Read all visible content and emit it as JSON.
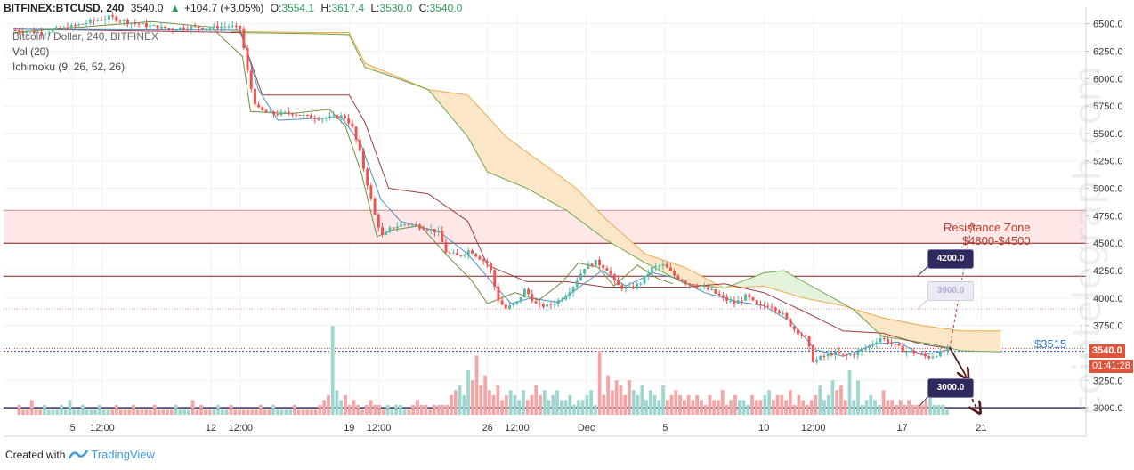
{
  "header": {
    "symbol": "BITFINEX:BTCUSD, 240",
    "last": "3540.0",
    "up_arrow": "▲",
    "change": "+104.7 (+3.05%)",
    "o_label": "O:",
    "o": "3554.1",
    "h_label": "H:",
    "h": "3617.4",
    "l_label": "L:",
    "l": "3530.0",
    "c_label": "C:",
    "c": "3540.0"
  },
  "legends": {
    "series": "Bitcoin / Dollar, 240, BITFINEX",
    "volume": "Vol (20)",
    "ichimoku": "Ichimoku (9, 26, 52, 26)"
  },
  "annotations": {
    "resistance_title": "Resistance Zone",
    "resistance_range": "$4800-$4500",
    "support_label": "$3515",
    "callout_high": "4200.0",
    "callout_mid": "3900.0",
    "callout_low": "3000.0"
  },
  "price_axis": {
    "last_price_tag": "3540.0",
    "countdown_tag": "01:41:28"
  },
  "footer": {
    "created_with": "Created with",
    "brand": "TradingView"
  },
  "watermark": "cointelegraph.com",
  "colors": {
    "bull": "#53b9a9",
    "bear": "#ef5350",
    "kumo_bear": "#fbe6c8",
    "kumo_bull": "#e5f2dc",
    "resistance_zone": "#fde7e7",
    "level_line": "#8b1a1a",
    "support_line": "#2b4fb8",
    "callout_dark": "#2e2a5c"
  },
  "chart_data": {
    "type": "candlestick",
    "y_ticks": [
      3000,
      3250,
      3500,
      3750,
      4000,
      4250,
      4500,
      4750,
      5000,
      5250,
      5500,
      5750,
      6000,
      6250,
      6500
    ],
    "y_tick_labels": [
      "3000.0",
      "3250.0",
      "3500.0",
      "3750.0",
      "4000.0",
      "4250.0",
      "4500.0",
      "4750.0",
      "5000.0",
      "5250.0",
      "5500.0",
      "5750.0",
      "6000.0",
      "6250.0",
      "6500.0"
    ],
    "ylim": [
      2920,
      6570
    ],
    "x_tick_labels": [
      "5",
      "12:00",
      "12",
      "12:00",
      "19",
      "12:00",
      "26",
      "12:00",
      "Dec",
      "5",
      "10",
      "12:00",
      "17",
      "21"
    ],
    "x_tick_days": [
      5,
      6.5,
      12,
      13.5,
      19,
      20.5,
      26,
      27.5,
      31,
      35,
      40,
      42.5,
      47,
      51
    ],
    "xlim_days": [
      1.5,
      56.3
    ],
    "levels": {
      "resistance_zone": [
        4500,
        4800
      ],
      "line_4200": 4200,
      "dotted_3900": 3900,
      "support": 3515,
      "last_price": 3540,
      "line_3000": 3000
    },
    "price_path": [
      [
        2.0,
        6440
      ],
      [
        3.5,
        6420
      ],
      [
        5.0,
        6470
      ],
      [
        6.0,
        6520
      ],
      [
        7.0,
        6560
      ],
      [
        8.0,
        6510
      ],
      [
        9.0,
        6480
      ],
      [
        10.0,
        6450
      ],
      [
        11.0,
        6470
      ],
      [
        12.0,
        6460
      ],
      [
        13.0,
        6480
      ],
      [
        13.6,
        6450
      ],
      [
        14.0,
        6000
      ],
      [
        14.4,
        5730
      ],
      [
        15.0,
        5680
      ],
      [
        15.6,
        5680
      ],
      [
        16.2,
        5690
      ],
      [
        17.0,
        5650
      ],
      [
        18.0,
        5640
      ],
      [
        18.8,
        5660
      ],
      [
        19.2,
        5580
      ],
      [
        19.6,
        5350
      ],
      [
        20.0,
        5050
      ],
      [
        20.4,
        4750
      ],
      [
        20.8,
        4550
      ],
      [
        21.2,
        4640
      ],
      [
        22.0,
        4680
      ],
      [
        23.0,
        4640
      ],
      [
        23.6,
        4600
      ],
      [
        24.0,
        4420
      ],
      [
        24.6,
        4380
      ],
      [
        25.2,
        4440
      ],
      [
        25.6,
        4380
      ],
      [
        26.2,
        4300
      ],
      [
        26.6,
        4000
      ],
      [
        27.0,
        3900
      ],
      [
        27.6,
        3960
      ],
      [
        28.0,
        4080
      ],
      [
        28.6,
        3930
      ],
      [
        29.2,
        3930
      ],
      [
        29.8,
        3990
      ],
      [
        30.4,
        4100
      ],
      [
        31.0,
        4280
      ],
      [
        31.6,
        4330
      ],
      [
        32.2,
        4260
      ],
      [
        32.6,
        4120
      ],
      [
        33.2,
        4080
      ],
      [
        33.8,
        4130
      ],
      [
        34.4,
        4270
      ],
      [
        35.0,
        4300
      ],
      [
        35.6,
        4200
      ],
      [
        36.2,
        4140
      ],
      [
        36.8,
        4100
      ],
      [
        37.4,
        4070
      ],
      [
        38.0,
        4000
      ],
      [
        38.6,
        3950
      ],
      [
        39.2,
        4020
      ],
      [
        39.8,
        3920
      ],
      [
        40.4,
        3940
      ],
      [
        41.0,
        3860
      ],
      [
        41.6,
        3720
      ],
      [
        42.2,
        3640
      ],
      [
        42.6,
        3420
      ],
      [
        43.0,
        3460
      ],
      [
        43.6,
        3500
      ],
      [
        44.2,
        3470
      ],
      [
        44.8,
        3500
      ],
      [
        45.4,
        3560
      ],
      [
        46.0,
        3640
      ],
      [
        46.6,
        3580
      ],
      [
        47.2,
        3520
      ],
      [
        47.8,
        3500
      ],
      [
        48.4,
        3460
      ],
      [
        49.0,
        3500
      ],
      [
        49.4,
        3540
      ]
    ],
    "kumo_span_a": [
      [
        13.0,
        6430
      ],
      [
        17.0,
        6420
      ],
      [
        19.0,
        6420
      ],
      [
        19.8,
        6140
      ],
      [
        21.0,
        6050
      ],
      [
        23.0,
        5900
      ],
      [
        25.0,
        5850
      ],
      [
        27.0,
        5460
      ],
      [
        29.0,
        5200
      ],
      [
        30.5,
        5000
      ],
      [
        32.0,
        4720
      ],
      [
        34.0,
        4400
      ],
      [
        36.0,
        4280
      ],
      [
        38.0,
        4090
      ],
      [
        40.0,
        4110
      ],
      [
        42.0,
        4000
      ],
      [
        44.0,
        3930
      ],
      [
        46.0,
        3820
      ],
      [
        48.0,
        3750
      ],
      [
        50.0,
        3700
      ],
      [
        52.0,
        3700
      ]
    ],
    "kumo_span_b": [
      [
        13.0,
        6420
      ],
      [
        17.0,
        6410
      ],
      [
        19.0,
        6400
      ],
      [
        19.8,
        6100
      ],
      [
        21.0,
        6030
      ],
      [
        23.0,
        5900
      ],
      [
        25.0,
        5470
      ],
      [
        26.0,
        5150
      ],
      [
        28.0,
        5000
      ],
      [
        30.0,
        4800
      ],
      [
        32.0,
        4530
      ],
      [
        34.0,
        4320
      ],
      [
        36.0,
        4130
      ],
      [
        38.0,
        4090
      ],
      [
        40.0,
        4230
      ],
      [
        41.0,
        4250
      ],
      [
        42.5,
        4100
      ],
      [
        44.5,
        3900
      ],
      [
        46.0,
        3650
      ],
      [
        48.5,
        3580
      ],
      [
        50.0,
        3520
      ],
      [
        52.0,
        3510
      ]
    ],
    "kijun": [
      [
        2.0,
        6450
      ],
      [
        13.5,
        6420
      ],
      [
        14.6,
        5850
      ],
      [
        16.0,
        5850
      ],
      [
        19.0,
        5850
      ],
      [
        19.8,
        5600
      ],
      [
        21.0,
        5000
      ],
      [
        23.0,
        4950
      ],
      [
        25.0,
        4700
      ],
      [
        26.0,
        4300
      ],
      [
        28.0,
        4150
      ],
      [
        30.0,
        4150
      ],
      [
        32.0,
        4100
      ],
      [
        34.0,
        4100
      ],
      [
        36.0,
        4100
      ],
      [
        38.0,
        4130
      ],
      [
        40.0,
        4050
      ],
      [
        42.0,
        3880
      ],
      [
        44.0,
        3700
      ],
      [
        46.0,
        3680
      ],
      [
        48.0,
        3580
      ],
      [
        49.4,
        3540
      ]
    ],
    "tenkan": [
      [
        2.0,
        6450
      ],
      [
        13.5,
        6440
      ],
      [
        14.4,
        5900
      ],
      [
        15.4,
        5620
      ],
      [
        18.6,
        5650
      ],
      [
        19.6,
        5400
      ],
      [
        20.6,
        4900
      ],
      [
        21.6,
        4700
      ],
      [
        23.6,
        4600
      ],
      [
        25.0,
        4400
      ],
      [
        26.2,
        4150
      ],
      [
        27.2,
        3950
      ],
      [
        28.2,
        4000
      ],
      [
        29.6,
        3960
      ],
      [
        30.8,
        4120
      ],
      [
        31.8,
        4250
      ],
      [
        33.0,
        4110
      ],
      [
        34.4,
        4230
      ],
      [
        35.6,
        4180
      ],
      [
        37.0,
        4050
      ],
      [
        38.6,
        3970
      ],
      [
        40.0,
        3930
      ],
      [
        41.4,
        3780
      ],
      [
        42.6,
        3530
      ],
      [
        44.0,
        3470
      ],
      [
        45.6,
        3580
      ],
      [
        46.8,
        3600
      ],
      [
        48.0,
        3480
      ],
      [
        49.4,
        3530
      ]
    ],
    "chikou": [
      [
        2.0,
        6420
      ],
      [
        9.0,
        6520
      ],
      [
        12.0,
        6470
      ],
      [
        13.6,
        6200
      ],
      [
        14.0,
        5700
      ],
      [
        16.0,
        5680
      ],
      [
        18.0,
        5720
      ],
      [
        18.8,
        5570
      ],
      [
        19.6,
        5150
      ],
      [
        20.4,
        4560
      ],
      [
        21.2,
        4620
      ],
      [
        22.6,
        4660
      ],
      [
        24.0,
        4380
      ],
      [
        25.2,
        4160
      ],
      [
        26.0,
        3950
      ],
      [
        27.4,
        4050
      ],
      [
        28.6,
        3980
      ],
      [
        29.8,
        4150
      ],
      [
        30.6,
        4320
      ],
      [
        31.6,
        4280
      ],
      [
        32.4,
        4110
      ],
      [
        33.6,
        4300
      ],
      [
        34.6,
        4180
      ],
      [
        35.4,
        4130
      ]
    ],
    "forecast_up": {
      "from": [
        49.4,
        3540
      ],
      "to": [
        50.5,
        4650
      ]
    },
    "forecast_down": [
      [
        49.4,
        3550
      ],
      [
        50.2,
        3300
      ],
      [
        50.6,
        3050
      ],
      [
        50.8,
        2990
      ]
    ],
    "volume_bars": [
      2,
      1,
      1,
      3,
      1,
      1,
      2,
      1,
      1,
      1,
      2,
      1,
      3,
      1,
      1,
      2,
      1,
      1,
      1,
      2,
      1,
      1,
      1,
      2,
      1,
      1,
      1,
      2,
      1,
      1,
      1,
      1,
      2,
      1,
      1,
      1,
      1,
      2,
      1,
      1,
      1,
      3,
      1,
      2,
      1,
      1,
      1,
      2,
      1,
      1,
      2,
      1,
      1,
      1,
      1,
      1,
      1,
      2,
      1,
      1,
      2,
      1,
      1,
      1,
      1,
      2,
      1,
      1,
      1,
      1,
      1,
      2,
      3,
      4,
      18,
      5,
      3,
      4,
      2,
      3,
      2,
      1,
      2,
      3,
      2,
      2,
      1,
      2,
      1,
      2,
      2,
      1,
      1,
      2,
      3,
      2,
      2,
      1,
      2,
      2,
      2,
      2,
      4,
      5,
      6,
      4,
      9,
      7,
      12,
      6,
      8,
      5,
      4,
      6,
      3,
      4,
      5,
      4,
      3,
      5,
      3,
      4,
      6,
      4,
      5,
      3,
      4,
      5,
      3,
      3,
      4,
      2,
      3,
      3,
      4,
      5,
      2,
      13,
      4,
      8,
      5,
      7,
      6,
      4,
      7,
      5,
      4,
      6,
      3,
      5,
      4,
      3,
      6,
      3,
      4,
      5,
      4,
      3,
      4,
      3,
      4,
      3,
      2,
      4,
      3,
      3,
      5,
      2,
      3,
      4,
      3,
      3,
      2,
      4,
      3,
      3,
      4,
      5,
      3,
      4,
      4,
      3,
      5,
      2,
      4,
      3,
      2,
      3,
      4,
      6,
      3,
      4,
      7,
      5,
      6,
      3,
      9,
      3,
      7,
      2,
      3,
      4,
      3,
      2,
      5,
      3,
      3,
      2,
      3,
      2,
      3,
      2,
      2,
      2,
      3,
      4,
      2,
      2,
      2,
      1
    ]
  }
}
